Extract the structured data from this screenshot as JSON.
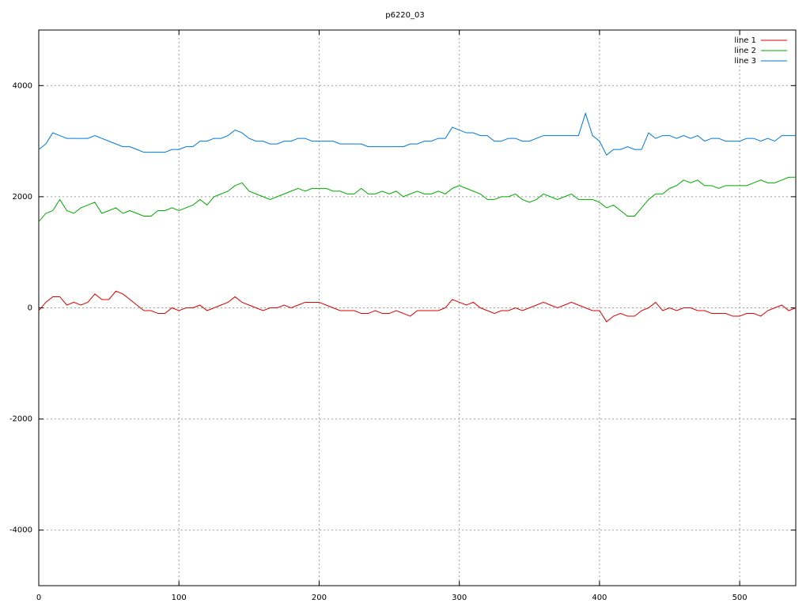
{
  "chart_data": {
    "type": "line",
    "title": "p6220_03",
    "x": [
      0,
      5,
      10,
      15,
      20,
      25,
      30,
      35,
      40,
      45,
      50,
      55,
      60,
      65,
      70,
      75,
      80,
      85,
      90,
      95,
      100,
      105,
      110,
      115,
      120,
      125,
      130,
      135,
      140,
      145,
      150,
      155,
      160,
      165,
      170,
      175,
      180,
      185,
      190,
      195,
      200,
      205,
      210,
      215,
      220,
      225,
      230,
      235,
      240,
      245,
      250,
      255,
      260,
      265,
      270,
      275,
      280,
      285,
      290,
      295,
      300,
      305,
      310,
      315,
      320,
      325,
      330,
      335,
      340,
      345,
      350,
      355,
      360,
      365,
      370,
      375,
      380,
      385,
      390,
      395,
      400,
      405,
      410,
      415,
      420,
      425,
      430,
      435,
      440,
      445,
      450,
      455,
      460,
      465,
      470,
      475,
      480,
      485,
      490,
      495,
      500,
      505,
      510,
      515,
      520,
      525,
      530,
      535,
      540
    ],
    "series": [
      {
        "name": "line 1",
        "color": "#dd0000",
        "values": [
          -50,
          100,
          200,
          200,
          50,
          100,
          50,
          100,
          250,
          150,
          150,
          300,
          250,
          150,
          50,
          -50,
          -50,
          -100,
          -100,
          0,
          -50,
          0,
          0,
          50,
          -50,
          0,
          50,
          100,
          200,
          100,
          50,
          0,
          -50,
          0,
          0,
          50,
          0,
          50,
          100,
          100,
          100,
          50,
          0,
          -50,
          -50,
          -50,
          -100,
          -100,
          -50,
          -100,
          -100,
          -50,
          -100,
          -150,
          -50,
          -50,
          -50,
          -50,
          0,
          150,
          100,
          50,
          100,
          0,
          -50,
          -100,
          -50,
          -50,
          0,
          -50,
          0,
          50,
          100,
          50,
          0,
          50,
          100,
          50,
          0,
          -50,
          -50,
          -250,
          -150,
          -100,
          -150,
          -150,
          -50,
          0,
          100,
          -50,
          0,
          -50,
          0,
          0,
          -50,
          -50,
          -100,
          -100,
          -100,
          -150,
          -150,
          -100,
          -100,
          -150,
          -50,
          0,
          50,
          -50,
          0
        ]
      },
      {
        "name": "line 2",
        "color": "#00aa00",
        "values": [
          1550,
          1700,
          1750,
          1950,
          1750,
          1700,
          1800,
          1850,
          1900,
          1700,
          1750,
          1800,
          1700,
          1750,
          1700,
          1650,
          1650,
          1750,
          1750,
          1800,
          1750,
          1800,
          1850,
          1950,
          1850,
          2000,
          2050,
          2100,
          2200,
          2250,
          2100,
          2050,
          2000,
          1950,
          2000,
          2050,
          2100,
          2150,
          2100,
          2150,
          2150,
          2150,
          2100,
          2100,
          2050,
          2050,
          2150,
          2050,
          2050,
          2100,
          2050,
          2100,
          2000,
          2050,
          2100,
          2050,
          2050,
          2100,
          2050,
          2150,
          2200,
          2150,
          2100,
          2050,
          1950,
          1950,
          2000,
          2000,
          2050,
          1950,
          1900,
          1950,
          2050,
          2000,
          1950,
          2000,
          2050,
          1950,
          1950,
          1950,
          1900,
          1800,
          1850,
          1750,
          1650,
          1650,
          1800,
          1950,
          2050,
          2050,
          2150,
          2200,
          2300,
          2250,
          2300,
          2200,
          2200,
          2150,
          2200,
          2200,
          2200,
          2200,
          2250,
          2300,
          2250,
          2250,
          2300,
          2350,
          2350
        ]
      },
      {
        "name": "line 3",
        "color": "#0077dd",
        "values": [
          2850,
          2950,
          3150,
          3100,
          3050,
          3050,
          3050,
          3050,
          3100,
          3050,
          3000,
          2950,
          2900,
          2900,
          2850,
          2800,
          2800,
          2800,
          2800,
          2850,
          2850,
          2900,
          2900,
          3000,
          3000,
          3050,
          3050,
          3100,
          3200,
          3150,
          3050,
          3000,
          3000,
          2950,
          2950,
          3000,
          3000,
          3050,
          3050,
          3000,
          3000,
          3000,
          3000,
          2950,
          2950,
          2950,
          2950,
          2900,
          2900,
          2900,
          2900,
          2900,
          2900,
          2950,
          2950,
          3000,
          3000,
          3050,
          3050,
          3250,
          3200,
          3150,
          3150,
          3100,
          3100,
          3000,
          3000,
          3050,
          3050,
          3000,
          3000,
          3050,
          3100,
          3100,
          3100,
          3100,
          3100,
          3100,
          3500,
          3100,
          3000,
          2750,
          2850,
          2850,
          2900,
          2850,
          2850,
          3150,
          3050,
          3100,
          3100,
          3050,
          3100,
          3050,
          3100,
          3000,
          3050,
          3050,
          3000,
          3000,
          3000,
          3050,
          3050,
          3000,
          3050,
          3000,
          3100,
          3100,
          3100
        ]
      }
    ],
    "xlim": [
      0,
      540
    ],
    "xticks": [
      0,
      100,
      200,
      300,
      400,
      500
    ],
    "ylim": [
      -5000,
      5000
    ],
    "yticks": [
      -4000,
      -2000,
      0,
      2000,
      4000
    ],
    "grid": true,
    "legend": "top-right"
  }
}
